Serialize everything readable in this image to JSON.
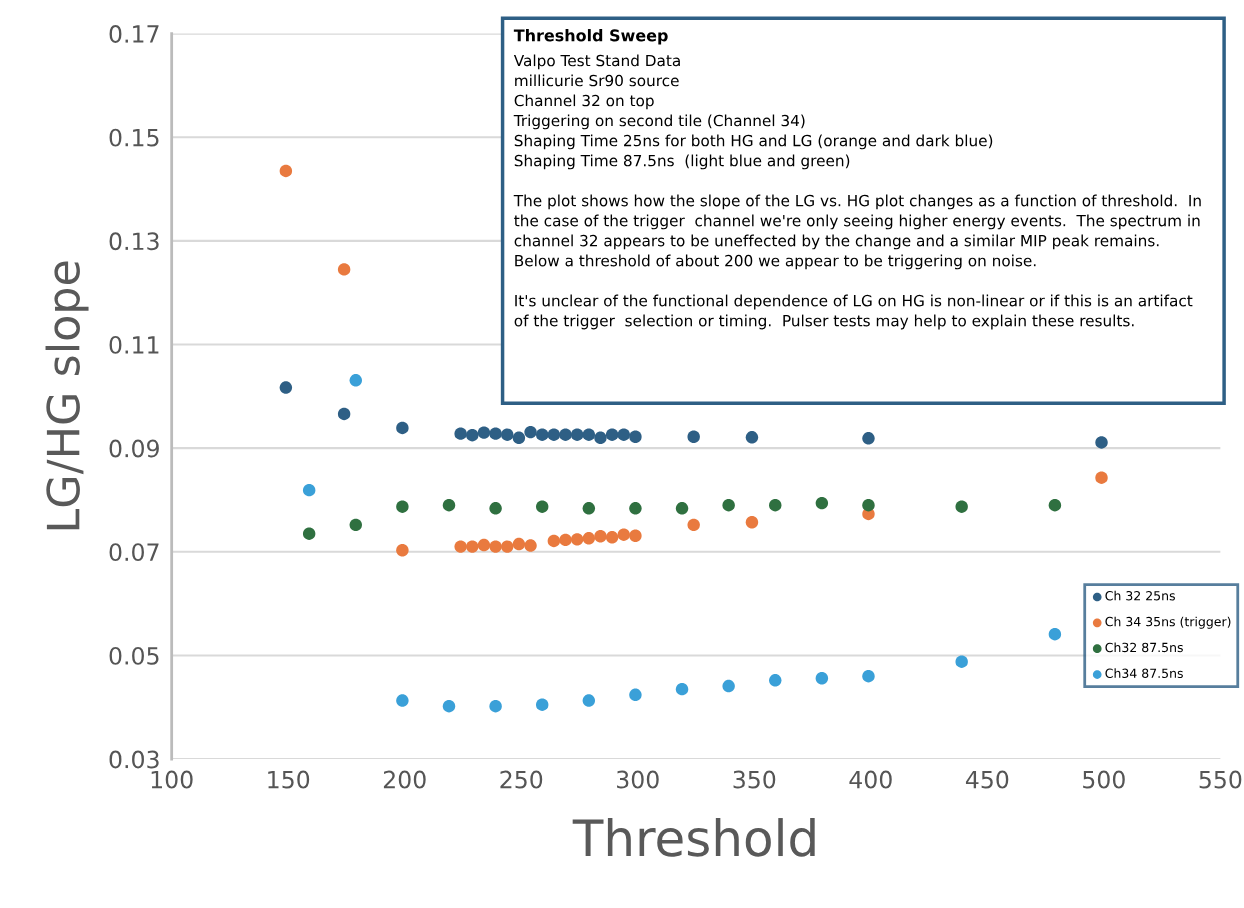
{
  "chart_data": {
    "type": "scatter",
    "title": "Threshold Sweep",
    "annotations": [
      "Valpo Test Stand Data\nmillicurie Sr90 source\nChannel 32 on top\nTriggering on second tile (Channel 34)\nShaping Time 25ns for both HG and LG (orange and dark blue)\nShaping Time 87.5ns  (light blue and green)",
      "The plot shows how the slope of the LG vs. HG plot changes as a function of threshold.  In\nthe case of the trigger  channel we're only seeing higher energy events.  The spectrum in\nchannel 32 appears to be uneffected by the change and a similar MIP peak remains.\nBelow a threshold of about 200 we appear to be triggering on noise.",
      "It's unclear of the functional dependence of LG on HG is non-linear or if this is an artifact\nof the trigger  selection or timing.  Pulser tests may help to explain these results."
    ],
    "xlabel": "Threshold",
    "ylabel": "LG/HG slope",
    "xlim": [
      100,
      550
    ],
    "xticks": [
      100,
      150,
      200,
      250,
      300,
      350,
      400,
      450,
      500,
      550
    ],
    "ylim": [
      0.03,
      0.17
    ],
    "yticks": [
      {
        "value": 0.03,
        "label": "0.03"
      },
      {
        "value": 0.05,
        "label": "0.05"
      },
      {
        "value": 0.07,
        "label": "0.07"
      },
      {
        "value": 0.09,
        "label": "0.09"
      },
      {
        "value": 0.11,
        "label": "0.11"
      },
      {
        "value": 0.13,
        "label": "0.13"
      },
      {
        "value": 0.15,
        "label": "0.15"
      },
      {
        "value": 0.17,
        "label": "0.17"
      }
    ],
    "grid": "y",
    "legend": "right",
    "marker": "circle",
    "series": [
      {
        "name": "Ch 32 25ns",
        "color": "#2e5f85",
        "x": [
          149,
          174,
          199,
          224,
          229,
          234,
          239,
          244,
          249,
          254,
          259,
          264,
          269,
          274,
          279,
          284,
          289,
          294,
          299,
          324,
          349,
          399,
          499
        ],
        "values": [
          0.1017,
          0.0966,
          0.0939,
          0.0928,
          0.0925,
          0.093,
          0.0928,
          0.0926,
          0.092,
          0.0931,
          0.0926,
          0.0926,
          0.0926,
          0.0926,
          0.0926,
          0.092,
          0.0926,
          0.0926,
          0.0922,
          0.0922,
          0.0921,
          0.0919,
          0.0911
        ]
      },
      {
        "name": "Ch 34 35ns (trigger)",
        "color": "#e97a3f",
        "x": [
          149,
          174,
          199,
          224,
          229,
          234,
          239,
          244,
          249,
          254,
          264,
          269,
          274,
          279,
          284,
          289,
          294,
          299,
          324,
          349,
          399,
          499
        ],
        "values": [
          0.1435,
          0.1245,
          0.0703,
          0.071,
          0.071,
          0.0713,
          0.071,
          0.071,
          0.0715,
          0.0712,
          0.0721,
          0.0723,
          0.0724,
          0.0726,
          0.073,
          0.0728,
          0.0733,
          0.0731,
          0.0752,
          0.0757,
          0.0773,
          0.0843
        ]
      },
      {
        "name": "Ch32 87.5ns",
        "color": "#2f7040",
        "x": [
          159,
          179,
          199,
          219,
          239,
          259,
          279,
          299,
          319,
          339,
          359,
          379,
          399,
          439,
          479
        ],
        "values": [
          0.0735,
          0.0752,
          0.0787,
          0.079,
          0.0784,
          0.0787,
          0.0784,
          0.0784,
          0.0784,
          0.079,
          0.079,
          0.0794,
          0.079,
          0.0787,
          0.079
        ]
      },
      {
        "name": "Ch34 87.5ns",
        "color": "#3aa0d8",
        "x": [
          159,
          179,
          199,
          219,
          239,
          259,
          279,
          299,
          319,
          339,
          359,
          379,
          399,
          439,
          479
        ],
        "values": [
          0.0819,
          0.1031,
          0.0413,
          0.0402,
          0.0402,
          0.0405,
          0.0413,
          0.0424,
          0.0435,
          0.0441,
          0.0452,
          0.0456,
          0.046,
          0.0488,
          0.0541
        ]
      }
    ]
  }
}
